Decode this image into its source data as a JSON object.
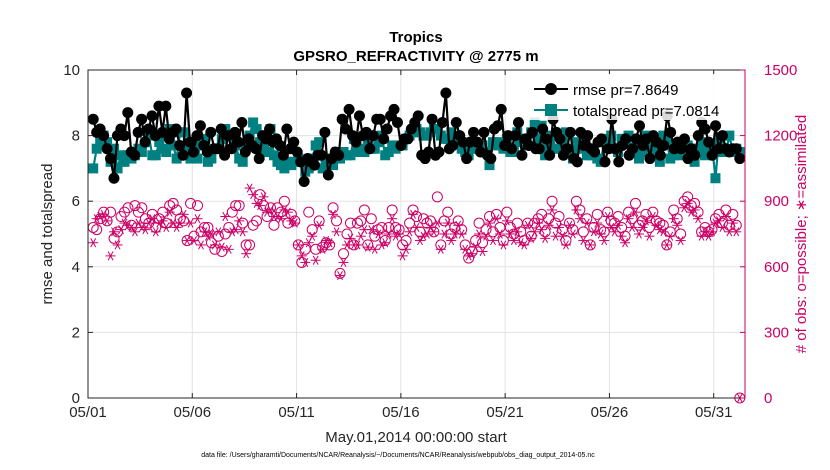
{
  "chart_data": {
    "type": "line",
    "title": "Tropics",
    "subtitle": "GPSRO_REFRACTIVITY @ 2775 m",
    "xlabel": "May.01,2014 00:00:00 start",
    "ylabel_left": "rmse and totalspread",
    "ylabel_right": "# of obs: o=possible; ∗=assimilated",
    "footnote": "data file: /Users/gharamti/Documents/NCAR/Reanalysis/~/Documents/NCAR/Reanalysis/webpub/obs_diag_output_2014-05.nc",
    "xlim": [
      0,
      31.5
    ],
    "ylim_left": [
      0,
      10
    ],
    "ylim_right": [
      0,
      1500
    ],
    "x_ticks": [
      0,
      5,
      10,
      15,
      20,
      25,
      30
    ],
    "x_tick_labels": [
      "05/01",
      "05/06",
      "05/11",
      "05/16",
      "05/21",
      "05/26",
      "05/31"
    ],
    "y_left_ticks": [
      0,
      2,
      4,
      6,
      8,
      10
    ],
    "y_left_tick_labels": [
      "0",
      "2",
      "4",
      "6",
      "8",
      "10"
    ],
    "y_right_ticks": [
      0,
      300,
      600,
      900,
      1200,
      1500
    ],
    "y_right_tick_labels": [
      "0",
      "300",
      "600",
      "900",
      "1200",
      "1500"
    ],
    "colors": {
      "rmse": "#000000",
      "totalspread": "#008080",
      "obs": "#cc0066",
      "grid": "#e3e3e3",
      "axis": "#262626"
    },
    "series": [
      {
        "name": "rmse",
        "legend": "rmse pr=7.8649",
        "axis": "left",
        "values": [
          8.5,
          8.1,
          8.2,
          8.0,
          7.6,
          7.3,
          6.7,
          8.0,
          8.2,
          8.0,
          8.7,
          7.5,
          7.4,
          8.1,
          8.5,
          7.8,
          8.2,
          8.6,
          8.0,
          8.9,
          8.1,
          8.9,
          7.9,
          8.1,
          8.2,
          7.7,
          7.4,
          9.3,
          7.8,
          7.5,
          8.0,
          8.3,
          7.7,
          7.5,
          8.1,
          7.6,
          7.6,
          8.2,
          7.4,
          8.0,
          7.6,
          8.1,
          7.8,
          8.4,
          7.5,
          7.9,
          7.7,
          7.6,
          7.3,
          8.0,
          7.9,
          8.2,
          7.8,
          7.9,
          7.7,
          7.4,
          8.2,
          7.6,
          7.8,
          7.5,
          7.2,
          6.6,
          7.3,
          7.2,
          7.1,
          7.4,
          7.4,
          8.1,
          6.8,
          7.3,
          7.5,
          7.4,
          8.5,
          8.2,
          8.8,
          8.0,
          7.8,
          8.6,
          8.0,
          8.1,
          7.6,
          8.0,
          8.5,
          8.5,
          7.9,
          8.2,
          8.6,
          8.8,
          8.4,
          7.7,
          7.9,
          7.9,
          8.2,
          8.4,
          8.6,
          7.4,
          7.3,
          7.5,
          8.5,
          7.4,
          7.5,
          8.4,
          9.3,
          7.6,
          7.7,
          8.4,
          8.0,
          7.8,
          7.3,
          7.8,
          8.1,
          7.8,
          7.5,
          8.1,
          7.4,
          7.3,
          8.2,
          8.3,
          8.8,
          7.7,
          8.0,
          7.6,
          8.0,
          8.4,
          7.4,
          7.9,
          7.7,
          8.1,
          7.6,
          7.6,
          8.2,
          7.9,
          7.4,
          8.5,
          8.1,
          7.9,
          7.4,
          7.6,
          8.1,
          7.3,
          7.2,
          8.1,
          7.7,
          8.0,
          7.6,
          7.5,
          7.8,
          7.9,
          7.2,
          7.6,
          8.5,
          7.6,
          7.2,
          7.7,
          7.9,
          7.4,
          7.6,
          7.9,
          8.3,
          7.7,
          7.9,
          7.3,
          8.0,
          7.8,
          7.4,
          7.7,
          8.6,
          8.1,
          7.6,
          7.8,
          7.6,
          7.9,
          7.3,
          7.6,
          7.4,
          8.0,
          8.4,
          8.2,
          7.8,
          7.4,
          8.3,
          7.6,
          8.0,
          7.6,
          7.5,
          7.6,
          7.6,
          7.3
        ]
      },
      {
        "name": "totalspread",
        "legend": "totalspread pr=7.0814",
        "axis": "left",
        "values": [
          7.0,
          7.6,
          7.8,
          8.0,
          7.8,
          7.2,
          7.6,
          7.0,
          7.4,
          7.2,
          7.4,
          7.3,
          7.4,
          7.6,
          7.5,
          7.8,
          8.0,
          7.4,
          7.4,
          7.8,
          7.6,
          7.5,
          8.2,
          7.7,
          7.3,
          8.1,
          8.1,
          7.6,
          7.3,
          7.5,
          7.3,
          7.8,
          7.9,
          7.2,
          7.3,
          7.6,
          7.6,
          7.9,
          8.2,
          8.0,
          7.6,
          7.7,
          7.3,
          7.2,
          7.7,
          8.0,
          8.4,
          8.2,
          7.8,
          7.6,
          7.5,
          8.2,
          7.4,
          7.2,
          7.1,
          7.0,
          7.2,
          7.1,
          7.2,
          7.3,
          7.2,
          6.9,
          7.0,
          7.3,
          7.7,
          7.8,
          7.0,
          7.1,
          7.3,
          7.1,
          7.5,
          7.3,
          7.5,
          7.4,
          7.4,
          7.9,
          7.5,
          7.6,
          7.5,
          7.9,
          7.6,
          7.6,
          7.8,
          8.0,
          7.4,
          7.5,
          7.7,
          7.6,
          7.7,
          7.7,
          7.9,
          8.0,
          8.1,
          8.2,
          8.1,
          8.0,
          8.0,
          8.1,
          8.2,
          8.2,
          8.0,
          7.9,
          7.9,
          8.1,
          7.8,
          7.8,
          7.6,
          7.5,
          7.4,
          7.6,
          7.8,
          7.6,
          7.7,
          7.5,
          7.1,
          7.8,
          7.7,
          7.8,
          7.6,
          7.9,
          7.5,
          7.5,
          8.1,
          7.8,
          7.9,
          7.7,
          8.1,
          8.4,
          7.9,
          8.3,
          7.4,
          7.7,
          8.0,
          7.6,
          7.6,
          7.9,
          8.1,
          7.6,
          7.3,
          7.8,
          7.6,
          7.7,
          7.4,
          7.4,
          7.5,
          7.3,
          7.2,
          7.8,
          7.9,
          8.0,
          7.6,
          7.5,
          7.9,
          7.9,
          8.0,
          7.6,
          7.6,
          7.3,
          7.5,
          8.0,
          7.8,
          7.5,
          7.5,
          7.2,
          8.0,
          7.8,
          7.3,
          7.4,
          7.5,
          7.4,
          7.6,
          7.7,
          7.6,
          7.2,
          7.6,
          7.8,
          7.4,
          7.5,
          7.7,
          6.7,
          7.9,
          7.5,
          7.5,
          8.0,
          7.5,
          7.6,
          7.5
        ]
      },
      {
        "name": "obs_possible",
        "marker": "circle",
        "axis": "right",
        "values": [
          780,
          770,
          820,
          850,
          810,
          850,
          730,
          760,
          830,
          850,
          870,
          790,
          880,
          850,
          870,
          820,
          800,
          840,
          780,
          820,
          850,
          800,
          880,
          890,
          860,
          820,
          810,
          720,
          890,
          740,
          880,
          760,
          780,
          780,
          710,
          680,
          740,
          670,
          750,
          780,
          850,
          880,
          880,
          800,
          700,
          700,
          790,
          810,
          930,
          880,
          830,
          870,
          790,
          870,
          850,
          900,
          800,
          840,
          810,
          700,
          620,
          680,
          850,
          770,
          680,
          810,
          690,
          710,
          700,
          870,
          810,
          570,
          660,
          750,
          800,
          700,
          800,
          810,
          860,
          700,
          820,
          740,
          770,
          780,
          720,
          780,
          860,
          780,
          770,
          700,
          720,
          800,
          860,
          830,
          760,
          820,
          800,
          810,
          760,
          920,
          700,
          810,
          850,
          750,
          780,
          810,
          770,
          700,
          640,
          670,
          720,
          800,
          710,
          770,
          830,
          760,
          840,
          780,
          720,
          850,
          780,
          750,
          800,
          760,
          720,
          800,
          740,
          800,
          820,
          840,
          760,
          820,
          900,
          800,
          830,
          770,
          720,
          800,
          770,
          900,
          860,
          760,
          820,
          700,
          780,
          840,
          770,
          760,
          850,
          810,
          800,
          830,
          780,
          740,
          850,
          820,
          890,
          790,
          810,
          840,
          780,
          850,
          810,
          800,
          790,
          700,
          760,
          860,
          820,
          750,
          900,
          920,
          880,
          890,
          850,
          760,
          780,
          760,
          770,
          820,
          840,
          800,
          860,
          790,
          840,
          790,
          0
        ]
      },
      {
        "name": "obs_assimilated",
        "marker": "asterisk",
        "axis": "right",
        "values": [
          710,
          820,
          830,
          840,
          810,
          650,
          760,
          700,
          770,
          800,
          790,
          780,
          760,
          800,
          780,
          770,
          800,
          820,
          760,
          800,
          810,
          780,
          850,
          800,
          780,
          800,
          840,
          720,
          800,
          720,
          820,
          700,
          760,
          740,
          750,
          700,
          760,
          690,
          830,
          680,
          760,
          770,
          810,
          760,
          660,
          960,
          930,
          890,
          880,
          920,
          850,
          860,
          830,
          830,
          820,
          860,
          850,
          810,
          800,
          700,
          650,
          620,
          710,
          740,
          630,
          790,
          680,
          720,
          710,
          840,
          760,
          560,
          620,
          700,
          730,
          700,
          700,
          740,
          770,
          690,
          770,
          680,
          750,
          700,
          710,
          750,
          820,
          740,
          750,
          650,
          680,
          760,
          840,
          780,
          720,
          740,
          750,
          780,
          760,
          800,
          680,
          750,
          800,
          720,
          750,
          790,
          750,
          680,
          650,
          660,
          690,
          750,
          670,
          740,
          800,
          720,
          820,
          750,
          700,
          810,
          750,
          720,
          760,
          710,
          700,
          790,
          730,
          760,
          800,
          770,
          730,
          790,
          860,
          740,
          780,
          740,
          700,
          790,
          750,
          860,
          820,
          720,
          800,
          700,
          760,
          800,
          750,
          720,
          830,
          780,
          760,
          790,
          740,
          710,
          820,
          780,
          850,
          750,
          780,
          810,
          740,
          830,
          790,
          770,
          760,
          700,
          740,
          820,
          790,
          720,
          870,
          890,
          850,
          860,
          820,
          740,
          760,
          740,
          760,
          800,
          810,
          780,
          830,
          760,
          800,
          760,
          0
        ]
      }
    ]
  }
}
